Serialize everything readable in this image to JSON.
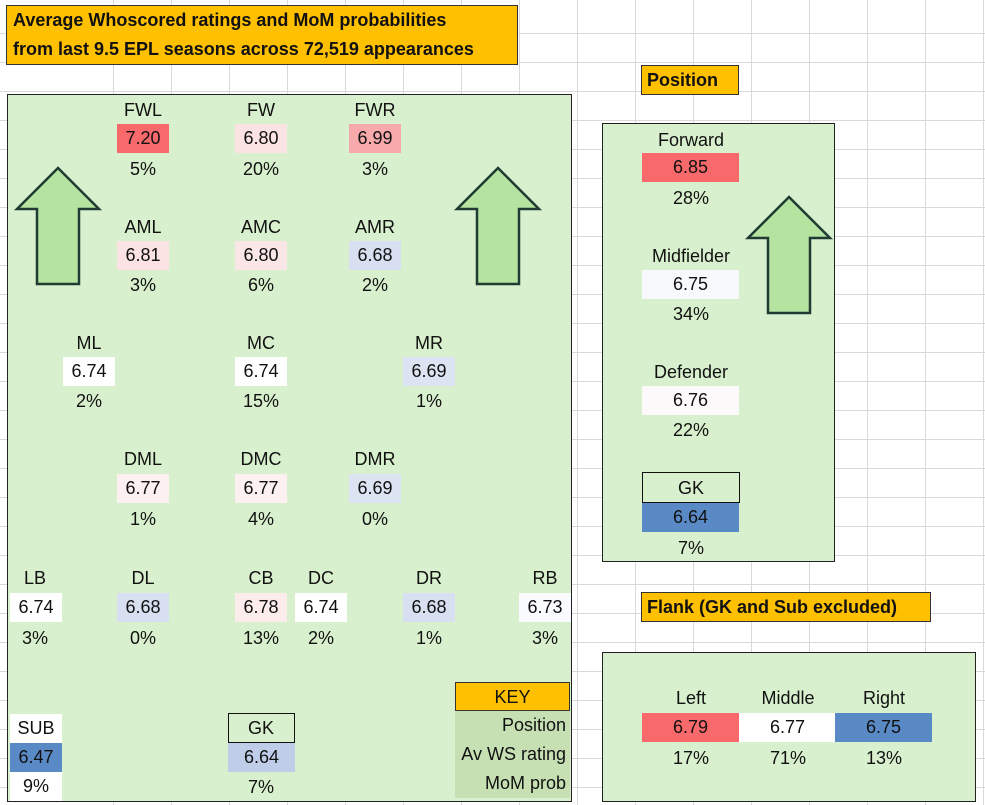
{
  "title": {
    "line1": "Average Whoscored ratings and MoM probabilities",
    "line2": "from last 9.5 EPL seasons across 72,519 appearances"
  },
  "pitch_positions": [
    {
      "label": "FWL",
      "rating": "7.20",
      "prob": "5%",
      "color": "#f8696b"
    },
    {
      "label": "FW",
      "rating": "6.80",
      "prob": "20%",
      "color": "#fbe3e4"
    },
    {
      "label": "FWR",
      "rating": "6.99",
      "prob": "3%",
      "color": "#f8a9ab"
    },
    {
      "label": "AML",
      "rating": "6.81",
      "prob": "3%",
      "color": "#fbe2e3"
    },
    {
      "label": "AMC",
      "rating": "6.80",
      "prob": "6%",
      "color": "#fbe6e7"
    },
    {
      "label": "AMR",
      "rating": "6.68",
      "prob": "2%",
      "color": "#d7dff0"
    },
    {
      "label": "ML",
      "rating": "6.74",
      "prob": "2%",
      "color": "#ffffff"
    },
    {
      "label": "MC",
      "rating": "6.74",
      "prob": "15%",
      "color": "#ffffff"
    },
    {
      "label": "MR",
      "rating": "6.69",
      "prob": "1%",
      "color": "#dce3f2"
    },
    {
      "label": "DML",
      "rating": "6.77",
      "prob": "1%",
      "color": "#fcf0f1"
    },
    {
      "label": "DMC",
      "rating": "6.77",
      "prob": "4%",
      "color": "#fcf0f1"
    },
    {
      "label": "DMR",
      "rating": "6.69",
      "prob": "0%",
      "color": "#dce3f2"
    },
    {
      "label": "LB",
      "rating": "6.74",
      "prob": "3%",
      "color": "#ffffff"
    },
    {
      "label": "DL",
      "rating": "6.68",
      "prob": "0%",
      "color": "#d7dff0"
    },
    {
      "label": "CB",
      "rating": "6.78",
      "prob": "13%",
      "color": "#fcecec"
    },
    {
      "label": "DC",
      "rating": "6.74",
      "prob": "2%",
      "color": "#ffffff"
    },
    {
      "label": "DR",
      "rating": "6.68",
      "prob": "1%",
      "color": "#d7dff0"
    },
    {
      "label": "RB",
      "rating": "6.73",
      "prob": "3%",
      "color": "#fafbfe"
    },
    {
      "label": "SUB",
      "rating": "6.47",
      "prob": "9%",
      "color": "#5a8ac6"
    },
    {
      "label": "GK",
      "rating": "6.64",
      "prob": "7%",
      "color": "#bfcde8"
    }
  ],
  "key": {
    "header": "KEY",
    "row1": "Position",
    "row2": "Av WS rating",
    "row3": "MoM prob",
    "header_color": "#ffc000",
    "row_color": "#c6e0b4"
  },
  "position_panel": {
    "header": "Position",
    "items": [
      {
        "label": "Forward",
        "rating": "6.85",
        "prob": "28%",
        "color": "#f8696b"
      },
      {
        "label": "Midfielder",
        "rating": "6.75",
        "prob": "34%",
        "color": "#f8f9fd"
      },
      {
        "label": "Defender",
        "rating": "6.76",
        "prob": "22%",
        "color": "#fdf8f9"
      },
      {
        "label": "GK",
        "rating": "6.64",
        "prob": "7%",
        "color": "#5a8ac6"
      }
    ]
  },
  "flank_panel": {
    "header": "Flank (GK and Sub excluded)",
    "items": [
      {
        "label": "Left",
        "rating": "6.79",
        "prob": "17%",
        "color": "#f8696b"
      },
      {
        "label": "Middle",
        "rating": "6.77",
        "prob": "71%",
        "color": "#ffffff"
      },
      {
        "label": "Right",
        "rating": "6.75",
        "prob": "13%",
        "color": "#5a8ac6"
      }
    ]
  },
  "colors": {
    "panel_bg": "#d8f0cd",
    "arrow_fill": "#b5e3a0",
    "arrow_stroke": "#1f3b33",
    "header_bg": "#ffc000"
  }
}
